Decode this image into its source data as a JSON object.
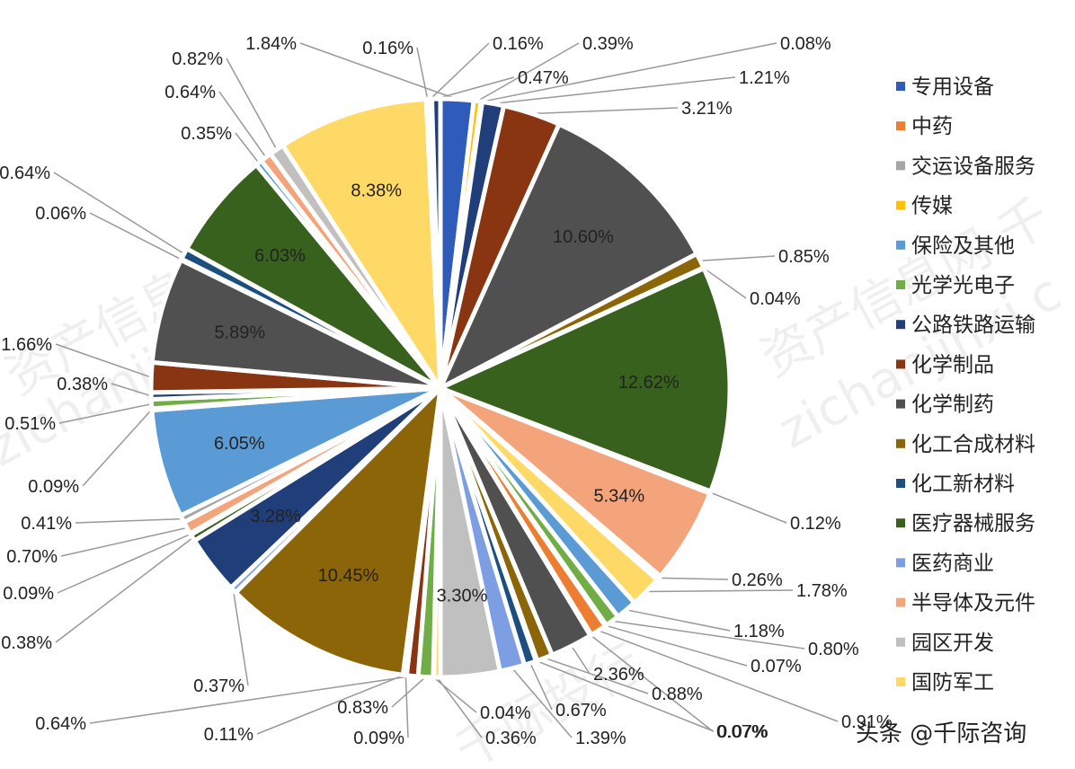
{
  "chart_data": {
    "type": "pie",
    "title": "",
    "legend_placement": "right",
    "colors": [
      "#2f5bbb",
      "#ed7d31",
      "#a5a5a5",
      "#ffc000",
      "#5b9bd5",
      "#70ad47",
      "#1f3e7a",
      "#8a3512",
      "#505050",
      "#8b6508",
      "#1c4e80",
      "#38611e",
      "#7d9ee3",
      "#f4a47a",
      "#c0c0c0",
      "#ffd966"
    ],
    "slices": [
      {
        "label": "专用设备",
        "value": 1.84
      },
      {
        "label": "传媒",
        "value": 0.39
      },
      {
        "label": "保险及其他",
        "value": 0.08
      },
      {
        "label": "公路铁路运输",
        "value": 1.21
      },
      {
        "label": "化学制品",
        "value": 3.21
      },
      {
        "label": "化学制药",
        "value": 10.6
      },
      {
        "label": "化工合成材料",
        "value": 0.85
      },
      {
        "label": "化工新材料",
        "value": 0.04
      },
      {
        "label": "医疗器械服务",
        "value": 12.62
      },
      {
        "label": "医药商业",
        "value": 0.12
      },
      {
        "label": "半导体及元件",
        "value": 5.34
      },
      {
        "label": "园区开发",
        "value": 0.26
      },
      {
        "label": "国防军工",
        "value": 1.78
      },
      {
        "label": "保险及其他",
        "value": 1.18
      },
      {
        "label": "光学光电子",
        "value": 0.8
      },
      {
        "label": "公路铁路运输",
        "value": 0.07
      },
      {
        "label": "中药",
        "value": 0.91
      },
      {
        "label": "交运设备服务",
        "value": 0.07
      },
      {
        "label": "化学制药",
        "value": 2.36
      },
      {
        "label": "化工合成材料",
        "value": 0.88
      },
      {
        "label": "医疗器械服务",
        "value": 0.07
      },
      {
        "label": "化工新材料",
        "value": 0.67
      },
      {
        "label": "医药商业",
        "value": 1.39
      },
      {
        "label": "园区开发",
        "value": 3.3
      },
      {
        "label": "国防军工",
        "value": 0.36
      },
      {
        "label": "交运设备服务",
        "value": 0.04
      },
      {
        "label": "光学光电子",
        "value": 0.83
      },
      {
        "label": "化学制品",
        "value": 0.64
      },
      {
        "label": "化工新材料",
        "value": 0.09
      },
      {
        "label": "公路铁路运输",
        "value": 0.11
      },
      {
        "label": "化工合成材料",
        "value": 10.45
      },
      {
        "label": "医药商业",
        "value": 0.37
      },
      {
        "label": "公路铁路运输",
        "value": 3.28
      },
      {
        "label": "医疗器械服务",
        "value": 0.38
      },
      {
        "label": "园区开发",
        "value": 0.09
      },
      {
        "label": "半导体及元件",
        "value": 0.7
      },
      {
        "label": "交运设备服务",
        "value": 0.41
      },
      {
        "label": "保险及其他",
        "value": 6.05
      },
      {
        "label": "交运设备服务",
        "value": 0.09
      },
      {
        "label": "光学光电子",
        "value": 0.51
      },
      {
        "label": "公路铁路运输",
        "value": 0.38
      },
      {
        "label": "化学制品",
        "value": 1.66
      },
      {
        "label": "化学制药",
        "value": 5.89
      },
      {
        "label": "交运设备服务",
        "value": 0.06
      },
      {
        "label": "化工新材料",
        "value": 0.64
      },
      {
        "label": "医疗器械服务",
        "value": 6.03
      },
      {
        "label": "保险及其他",
        "value": 0.35
      },
      {
        "label": "半导体及元件",
        "value": 0.64
      },
      {
        "label": "园区开发",
        "value": 0.82
      },
      {
        "label": "国防军工",
        "value": 8.38
      },
      {
        "label": "交运设备服务",
        "value": 0.16
      },
      {
        "label": "交运设备服务",
        "value": 0.16
      },
      {
        "label": "公路铁路运输",
        "value": 0.47
      }
    ],
    "value_labels": [
      "1.84%",
      "0.39%",
      "0.08%",
      "1.21%",
      "3.21%",
      "10.60%",
      "0.85%",
      "0.04%",
      "12.62%",
      "0.12%",
      "5.34%",
      "0.26%",
      "1.78%",
      "1.18%",
      "0.80%",
      "0.07%",
      "0.91%",
      "0.07%",
      "2.36%",
      "0.88%",
      "0.07%",
      "0.67%",
      "1.39%",
      "3.30%",
      "0.36%",
      "0.04%",
      "0.83%",
      "0.64%",
      "0.09%",
      "0.11%",
      "10.45%",
      "0.37%",
      "3.28%",
      "0.38%",
      "0.09%",
      "0.70%",
      "0.41%",
      "6.05%",
      "0.09%",
      "0.51%",
      "0.38%",
      "1.66%",
      "5.89%",
      "0.06%",
      "0.64%",
      "6.03%",
      "0.35%",
      "0.64%",
      "0.82%",
      "8.38%",
      "0.16%",
      "0.16%",
      "0.47%"
    ],
    "legend": [
      {
        "label": "专用设备",
        "color": "#2f5bbb"
      },
      {
        "label": "中药",
        "color": "#ed7d31"
      },
      {
        "label": "交运设备服务",
        "color": "#a5a5a5"
      },
      {
        "label": "传媒",
        "color": "#ffc000"
      },
      {
        "label": "保险及其他",
        "color": "#5b9bd5"
      },
      {
        "label": "光学光电子",
        "color": "#70ad47"
      },
      {
        "label": "公路铁路运输",
        "color": "#1f3e7a"
      },
      {
        "label": "化学制品",
        "color": "#8a3512"
      },
      {
        "label": "化学制药",
        "color": "#505050"
      },
      {
        "label": "化工合成材料",
        "color": "#8b6508"
      },
      {
        "label": "化工新材料",
        "color": "#1c4e80"
      },
      {
        "label": "医疗器械服务",
        "color": "#38611e"
      },
      {
        "label": "医药商业",
        "color": "#7d9ee3"
      },
      {
        "label": "半导体及元件",
        "color": "#f4a47a"
      },
      {
        "label": "园区开发",
        "color": "#c0c0c0"
      },
      {
        "label": "国防军工",
        "color": "#ffd966"
      }
    ]
  },
  "watermarks": [
    "资产信息网 千际投行",
    "zichanjinxi.com",
    "资产信息网 千",
    "zichanjinxi.c",
    "千际投行"
  ],
  "credit": "头条 @千际咨询"
}
